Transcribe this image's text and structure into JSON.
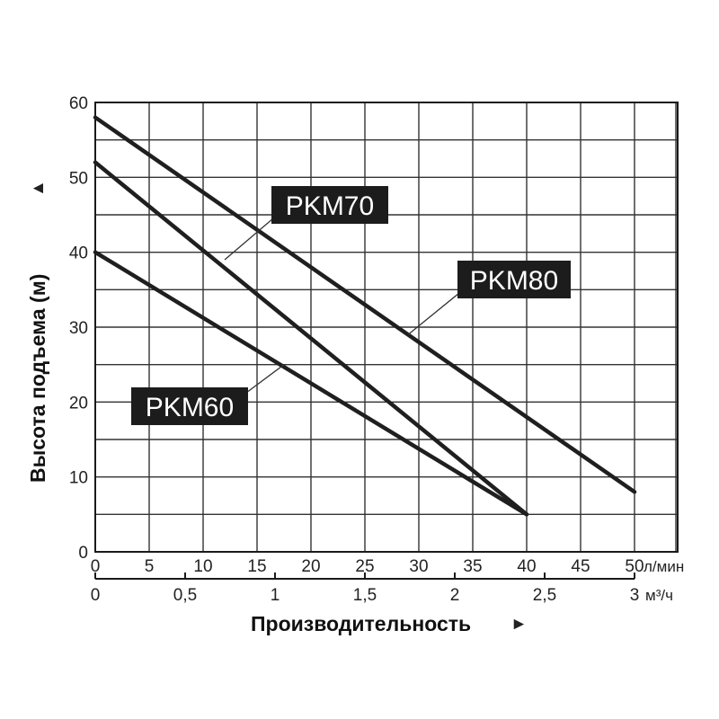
{
  "chart_data": {
    "type": "line",
    "title": "",
    "xlabel": "Производительность",
    "ylabel": "Высота подъема (м)",
    "x_arrow": "►",
    "y_arrow": "▲",
    "xlim": [
      0,
      50
    ],
    "ylim": [
      0,
      60
    ],
    "grid": true,
    "x_ticks": [
      "0",
      "5",
      "10",
      "15",
      "20",
      "25",
      "30",
      "35",
      "40",
      "45",
      "50"
    ],
    "x_unit": "л/мин",
    "x2_ticks": [
      {
        "value": 0,
        "label": "0"
      },
      {
        "value": 0.5,
        "label": "0,5"
      },
      {
        "value": 1,
        "label": "1"
      },
      {
        "value": 1.5,
        "label": "1,5"
      },
      {
        "value": 2,
        "label": "2"
      },
      {
        "value": 2.5,
        "label": "2,5"
      },
      {
        "value": 3,
        "label": "3"
      }
    ],
    "x2_unit": "м³/ч",
    "y_ticks": [
      "0",
      "10",
      "20",
      "30",
      "40",
      "50",
      "60"
    ],
    "series": [
      {
        "name": "PKM60",
        "x": [
          0,
          40
        ],
        "y": [
          40,
          5
        ]
      },
      {
        "name": "PKM70",
        "x": [
          0,
          40
        ],
        "y": [
          52,
          5
        ]
      },
      {
        "name": "PKM80",
        "x": [
          0,
          50
        ],
        "y": [
          58,
          8
        ]
      }
    ],
    "labels": [
      {
        "series": "PKM70",
        "text": "PKM70",
        "point": [
          12,
          39
        ]
      },
      {
        "series": "PKM80",
        "text": "PKM80",
        "point": [
          29,
          29
        ]
      },
      {
        "series": "PKM60",
        "text": "PKM60",
        "point": [
          17.5,
          25
        ]
      }
    ]
  }
}
